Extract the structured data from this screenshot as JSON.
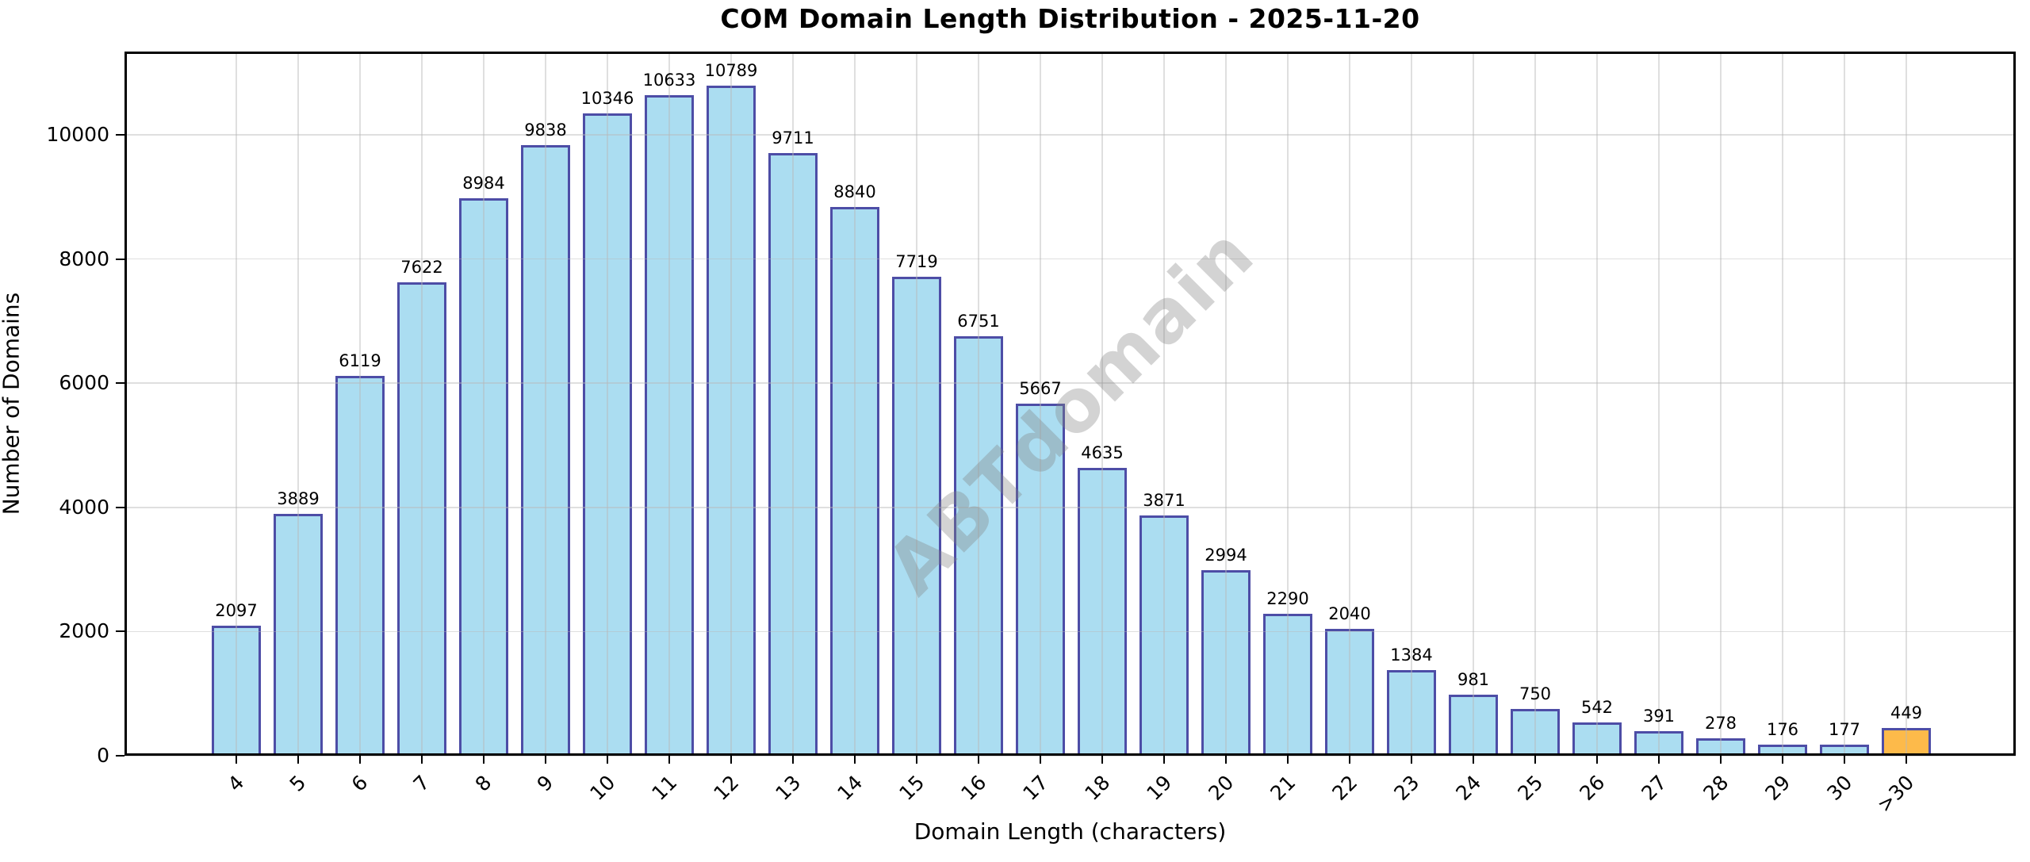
{
  "title": "COM Domain Length Distribution - 2025-11-20",
  "watermark": "ABTdomain",
  "chart_data": {
    "type": "bar",
    "title": "COM Domain Length Distribution - 2025-11-20",
    "xlabel": "Domain Length (characters)",
    "ylabel": "Number of Domains",
    "categories": [
      "4",
      "5",
      "6",
      "7",
      "8",
      "9",
      "10",
      "11",
      "12",
      "13",
      "14",
      "15",
      "16",
      "17",
      "18",
      "19",
      "20",
      "21",
      "22",
      "23",
      "24",
      "25",
      "26",
      "27",
      "28",
      "29",
      "30",
      ">30"
    ],
    "values": [
      2097,
      3889,
      6119,
      7622,
      8984,
      9838,
      10346,
      10633,
      10789,
      9711,
      8840,
      7719,
      6751,
      5667,
      4635,
      3871,
      2994,
      2290,
      2040,
      1384,
      981,
      750,
      542,
      391,
      278,
      176,
      177,
      449
    ],
    "value_labels_shown": true,
    "yticks": [
      0,
      2000,
      4000,
      6000,
      8000,
      10000
    ],
    "ylim": [
      0,
      11340
    ],
    "grid": "on",
    "grid_above_bars": true,
    "legend": "none",
    "colors": {
      "bar_fill": "#ABDDF1",
      "bar_border": "#4D4DA6",
      "highlight_fill": "#FDBA4A",
      "highlight_border": "#4D4DA6",
      "axis": "#000000",
      "grid": "#BDBDBD",
      "watermark_gray": "#808080"
    },
    "highlight_index": 27,
    "x_tick_rotation_deg": 45
  }
}
